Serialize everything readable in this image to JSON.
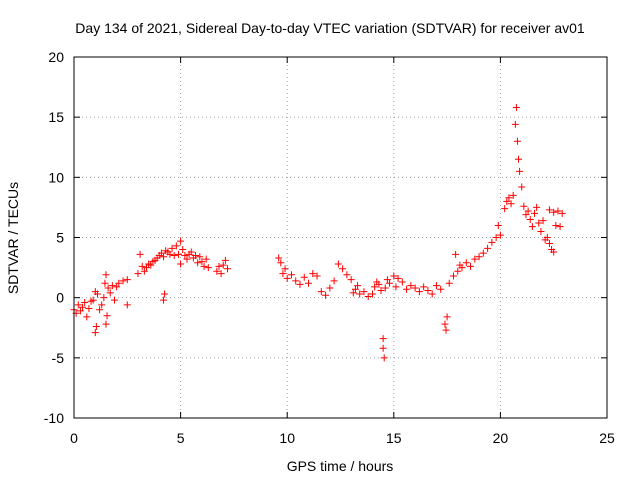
{
  "chart_data": {
    "type": "scatter",
    "title": "Day 134 of 2021, Sidereal Day-to-day VTEC variation (SDTVAR) for receiver av01",
    "xlabel": "GPS time / hours",
    "ylabel": "SDTVAR / TECUs",
    "xlim": [
      0,
      25
    ],
    "ylim": [
      -10,
      20
    ],
    "xticks": [
      0,
      5,
      10,
      15,
      20,
      25
    ],
    "yticks": [
      -10,
      -5,
      0,
      5,
      10,
      15,
      20
    ],
    "xtick_labels": [
      "0",
      "5",
      "10",
      "15",
      "20",
      "25"
    ],
    "ytick_labels": [
      "-10",
      "-5",
      "0",
      "5",
      "10",
      "15",
      "20"
    ],
    "grid": true,
    "marker": "+",
    "color": "#ff0000",
    "series": [
      {
        "name": "SDTVAR",
        "points": [
          [
            0.0,
            -1.0
          ],
          [
            0.1,
            -1.3
          ],
          [
            0.2,
            -0.6
          ],
          [
            0.3,
            -1.1
          ],
          [
            0.4,
            -0.8
          ],
          [
            0.5,
            -0.4
          ],
          [
            0.6,
            -1.6
          ],
          [
            0.7,
            -0.9
          ],
          [
            0.8,
            -0.3
          ],
          [
            0.9,
            -0.2
          ],
          [
            1.0,
            0.5
          ],
          [
            1.0,
            -2.9
          ],
          [
            1.05,
            -2.4
          ],
          [
            1.1,
            0.3
          ],
          [
            1.2,
            -1.0
          ],
          [
            1.3,
            -0.6
          ],
          [
            1.4,
            0.0
          ],
          [
            1.45,
            1.2
          ],
          [
            1.5,
            1.9
          ],
          [
            1.5,
            -2.2
          ],
          [
            1.55,
            -1.5
          ],
          [
            1.6,
            0.8
          ],
          [
            1.7,
            0.4
          ],
          [
            1.8,
            1.0
          ],
          [
            1.9,
            -0.2
          ],
          [
            2.0,
            0.9
          ],
          [
            2.1,
            1.2
          ],
          [
            2.3,
            1.4
          ],
          [
            2.5,
            1.5
          ],
          [
            2.5,
            -0.6
          ],
          [
            3.0,
            2.0
          ],
          [
            3.1,
            3.6
          ],
          [
            3.2,
            2.6
          ],
          [
            3.3,
            2.2
          ],
          [
            3.4,
            2.5
          ],
          [
            3.5,
            2.8
          ],
          [
            3.6,
            2.7
          ],
          [
            3.7,
            3.0
          ],
          [
            3.8,
            3.1
          ],
          [
            3.9,
            3.3
          ],
          [
            4.0,
            3.5
          ],
          [
            4.1,
            3.7
          ],
          [
            4.2,
            3.4
          ],
          [
            4.2,
            -0.2
          ],
          [
            4.25,
            0.3
          ],
          [
            4.3,
            3.9
          ],
          [
            4.4,
            3.8
          ],
          [
            4.5,
            3.6
          ],
          [
            4.6,
            4.1
          ],
          [
            4.7,
            3.5
          ],
          [
            4.8,
            4.3
          ],
          [
            4.9,
            3.6
          ],
          [
            5.0,
            4.7
          ],
          [
            5.0,
            2.8
          ],
          [
            5.1,
            4.0
          ],
          [
            5.2,
            3.5
          ],
          [
            5.3,
            3.2
          ],
          [
            5.4,
            3.6
          ],
          [
            5.5,
            3.8
          ],
          [
            5.6,
            3.3
          ],
          [
            5.7,
            3.5
          ],
          [
            5.8,
            2.9
          ],
          [
            5.9,
            3.4
          ],
          [
            6.0,
            3.0
          ],
          [
            6.1,
            2.6
          ],
          [
            6.2,
            3.2
          ],
          [
            6.3,
            2.5
          ],
          [
            6.7,
            2.2
          ],
          [
            6.8,
            2.6
          ],
          [
            6.9,
            2.0
          ],
          [
            7.0,
            2.7
          ],
          [
            7.1,
            3.1
          ],
          [
            7.2,
            2.4
          ],
          [
            9.6,
            3.3
          ],
          [
            9.7,
            2.9
          ],
          [
            9.8,
            2.0
          ],
          [
            9.9,
            2.4
          ],
          [
            10.0,
            1.6
          ],
          [
            10.2,
            1.9
          ],
          [
            10.4,
            1.4
          ],
          [
            10.6,
            1.1
          ],
          [
            10.8,
            1.7
          ],
          [
            11.0,
            1.2
          ],
          [
            11.2,
            2.0
          ],
          [
            11.4,
            1.8
          ],
          [
            11.6,
            0.5
          ],
          [
            11.8,
            0.2
          ],
          [
            12.0,
            0.8
          ],
          [
            12.2,
            1.4
          ],
          [
            12.4,
            2.8
          ],
          [
            12.6,
            2.4
          ],
          [
            12.8,
            1.9
          ],
          [
            13.0,
            1.5
          ],
          [
            13.1,
            0.4
          ],
          [
            13.2,
            0.7
          ],
          [
            13.3,
            1.0
          ],
          [
            13.4,
            0.3
          ],
          [
            13.6,
            0.5
          ],
          [
            13.8,
            0.1
          ],
          [
            14.0,
            0.3
          ],
          [
            14.1,
            0.9
          ],
          [
            14.2,
            1.3
          ],
          [
            14.3,
            1.1
          ],
          [
            14.4,
            0.6
          ],
          [
            14.5,
            -3.4
          ],
          [
            14.5,
            -4.2
          ],
          [
            14.55,
            -5.0
          ],
          [
            14.6,
            0.8
          ],
          [
            14.7,
            1.5
          ],
          [
            14.8,
            1.2
          ],
          [
            15.0,
            1.8
          ],
          [
            15.1,
            0.9
          ],
          [
            15.2,
            1.6
          ],
          [
            15.4,
            1.3
          ],
          [
            15.6,
            0.7
          ],
          [
            15.8,
            1.0
          ],
          [
            16.0,
            0.8
          ],
          [
            16.2,
            0.5
          ],
          [
            16.4,
            0.9
          ],
          [
            16.6,
            0.6
          ],
          [
            16.8,
            0.3
          ],
          [
            17.0,
            1.0
          ],
          [
            17.2,
            0.7
          ],
          [
            17.4,
            -2.2
          ],
          [
            17.45,
            -2.7
          ],
          [
            17.5,
            -1.6
          ],
          [
            17.6,
            1.2
          ],
          [
            17.8,
            1.8
          ],
          [
            17.9,
            3.6
          ],
          [
            18.0,
            2.2
          ],
          [
            18.1,
            2.7
          ],
          [
            18.2,
            2.5
          ],
          [
            18.4,
            2.9
          ],
          [
            18.6,
            2.6
          ],
          [
            18.8,
            3.2
          ],
          [
            19.0,
            3.4
          ],
          [
            19.2,
            3.7
          ],
          [
            19.4,
            4.1
          ],
          [
            19.6,
            4.6
          ],
          [
            19.8,
            5.0
          ],
          [
            19.9,
            6.0
          ],
          [
            20.0,
            5.2
          ],
          [
            20.2,
            7.4
          ],
          [
            20.3,
            8.0
          ],
          [
            20.4,
            8.3
          ],
          [
            20.5,
            7.8
          ],
          [
            20.6,
            8.5
          ],
          [
            20.7,
            14.4
          ],
          [
            20.75,
            15.8
          ],
          [
            20.8,
            13.0
          ],
          [
            20.85,
            11.5
          ],
          [
            20.9,
            10.5
          ],
          [
            21.0,
            9.2
          ],
          [
            21.1,
            7.6
          ],
          [
            21.2,
            6.9
          ],
          [
            21.3,
            7.2
          ],
          [
            21.4,
            6.5
          ],
          [
            21.5,
            5.9
          ],
          [
            21.6,
            7.0
          ],
          [
            21.7,
            7.5
          ],
          [
            21.8,
            6.2
          ],
          [
            21.9,
            5.5
          ],
          [
            22.0,
            6.4
          ],
          [
            22.1,
            4.8
          ],
          [
            22.2,
            5.0
          ],
          [
            22.3,
            4.5
          ],
          [
            22.4,
            4.0
          ],
          [
            22.5,
            3.8
          ],
          [
            22.3,
            7.3
          ],
          [
            22.5,
            7.1
          ],
          [
            22.6,
            6.0
          ],
          [
            22.7,
            7.2
          ],
          [
            22.8,
            5.9
          ],
          [
            22.9,
            7.0
          ]
        ]
      }
    ]
  }
}
